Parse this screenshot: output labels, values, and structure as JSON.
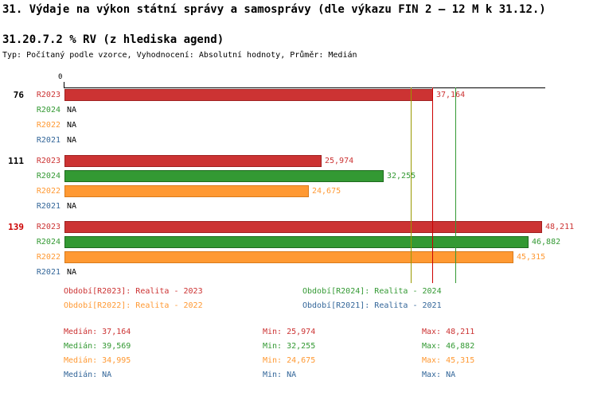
{
  "title": "31. Výdaje na výkon státní správy a samosprávy (dle výkazu FIN 2 – 12 M k 31.12.)",
  "subtitle": "31.20.7.2 % RV (z hlediska agend)",
  "meta_line": "Typ: Počítaný podle vzorce, Vyhodnocení: Absolutní hodnoty, Průměr: Medián",
  "colors": {
    "r2023": "#cc3333",
    "r2024": "#339933",
    "r2022": "#ff9933",
    "r2021": "#336699",
    "highlight_group_label": "#cc0000",
    "axis": "#000000"
  },
  "chart_data": {
    "type": "bar",
    "orientation": "horizontal",
    "title": "31.20.7.2 % RV (z hlediska agend)",
    "x_axis": {
      "origin_label": "0",
      "min": 0
    },
    "grid": false,
    "series_order": [
      "R2023",
      "R2024",
      "R2022",
      "R2021"
    ],
    "series_colors": {
      "R2023": "#cc3333",
      "R2024": "#339933",
      "R2022": "#ff9933",
      "R2021": "#336699"
    },
    "series_border_colors": {
      "R2023": "#a02020",
      "R2024": "#1e6b1e",
      "R2022": "#d97b1c",
      "R2021": "#2a5580"
    },
    "reference_lines": [
      {
        "name": "median-r2022",
        "value": 34995,
        "color": "#999900"
      },
      {
        "name": "median-r2023",
        "value": 37164,
        "color": "#cc0000"
      },
      {
        "name": "median-r2024",
        "value": 39569,
        "color": "#339933"
      }
    ],
    "groups": [
      {
        "label": "76",
        "label_color": "#000000",
        "bars": [
          {
            "series": "R2023",
            "value": 37164,
            "display": "37,164"
          },
          {
            "series": "R2024",
            "value": null,
            "display": "NA"
          },
          {
            "series": "R2022",
            "value": null,
            "display": "NA"
          },
          {
            "series": "R2021",
            "value": null,
            "display": "NA"
          }
        ]
      },
      {
        "label": "111",
        "label_color": "#000000",
        "bars": [
          {
            "series": "R2023",
            "value": 25974,
            "display": "25,974"
          },
          {
            "series": "R2024",
            "value": 32255,
            "display": "32,255"
          },
          {
            "series": "R2022",
            "value": 24675,
            "display": "24,675"
          },
          {
            "series": "R2021",
            "value": null,
            "display": "NA"
          }
        ]
      },
      {
        "label": "139",
        "label_color": "#cc0000",
        "bars": [
          {
            "series": "R2023",
            "value": 48211,
            "display": "48,211"
          },
          {
            "series": "R2024",
            "value": 46882,
            "display": "46,882"
          },
          {
            "series": "R2022",
            "value": 45315,
            "display": "45,315"
          },
          {
            "series": "R2021",
            "value": null,
            "display": "NA"
          }
        ]
      }
    ]
  },
  "legend": {
    "items": [
      {
        "label": "Období[R2023]: Realita - 2023",
        "color": "#cc3333"
      },
      {
        "label": "Období[R2024]: Realita - 2024",
        "color": "#339933"
      },
      {
        "label": "Období[R2022]: Realita - 2022",
        "color": "#ff9933"
      },
      {
        "label": "Období[R2021]: Realita - 2021",
        "color": "#336699"
      }
    ]
  },
  "stats": {
    "rows": [
      {
        "median": "Medián: 37,164",
        "min": "Min: 25,974",
        "max": "Max: 48,211",
        "color": "#cc3333"
      },
      {
        "median": "Medián: 39,569",
        "min": "Min: 32,255",
        "max": "Max: 46,882",
        "color": "#339933"
      },
      {
        "median": "Medián: 34,995",
        "min": "Min: 24,675",
        "max": "Max: 45,315",
        "color": "#ff9933"
      },
      {
        "median": "Medián: NA",
        "min": "Min: NA",
        "max": "Max: NA",
        "color": "#336699"
      }
    ]
  }
}
